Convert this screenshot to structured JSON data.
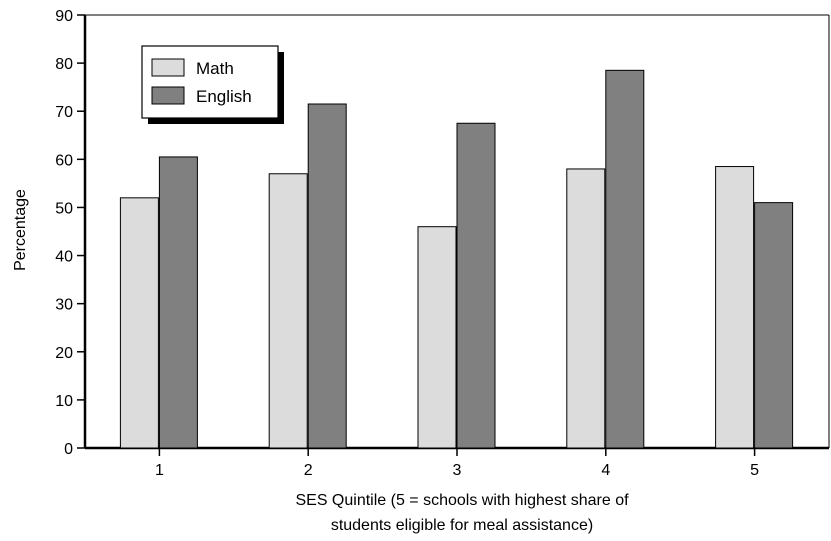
{
  "chart_data": {
    "type": "bar",
    "categories": [
      "1",
      "2",
      "3",
      "4",
      "5"
    ],
    "series": [
      {
        "name": "Math",
        "values": [
          52,
          57,
          46,
          58,
          58.5
        ],
        "color": "#dcdcdc"
      },
      {
        "name": "English",
        "values": [
          60.5,
          71.5,
          67.5,
          78.5,
          51
        ],
        "color": "#808080"
      }
    ],
    "ylabel": "Percentage",
    "xlabel_lines": [
      "SES Quintile (5 = schools with highest share of",
      "students eligible for meal assistance)"
    ],
    "ylim": [
      0,
      90
    ],
    "yticks": [
      0,
      10,
      20,
      30,
      40,
      50,
      60,
      70,
      80,
      90
    ],
    "grid": false,
    "legend_position": "top-left"
  }
}
